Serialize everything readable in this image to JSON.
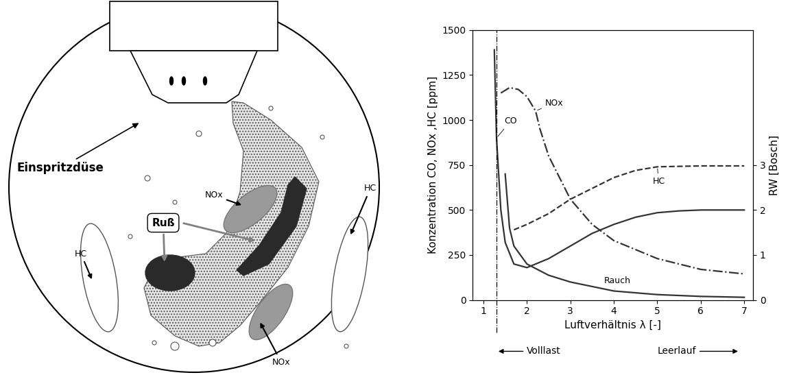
{
  "diagram": {
    "injector": "Einspritzdüse",
    "soot": "Ruß",
    "nox_labels": [
      "NOx",
      "NOx"
    ],
    "hc_labels": [
      "HC",
      "HC"
    ]
  },
  "chart_data": {
    "type": "line",
    "xlabel": "Luftverhältnis λ [-]",
    "ylabel": "Konzentration CO, NOx ,HC [ppm]",
    "y2label": "RW [Bosch]",
    "xlim": [
      0.75,
      7.2
    ],
    "xticks": [
      1,
      2,
      3,
      4,
      5,
      6,
      7
    ],
    "ylim": [
      0,
      1500
    ],
    "yticks": [
      0,
      250,
      500,
      750,
      1000,
      1250,
      1500
    ],
    "y2lim": [
      0,
      6
    ],
    "y2ticks": [
      0,
      1,
      2,
      3
    ],
    "grid": false,
    "series": [
      {
        "name": "CO",
        "color": "#333333",
        "line_style": "solid",
        "x": [
          1.25,
          1.3,
          1.4,
          1.5,
          1.7,
          2.0,
          2.5,
          3.0,
          3.5,
          4.0,
          4.5,
          5.0,
          5.5,
          6.0,
          6.5,
          7.0
        ],
        "values": [
          1390,
          900,
          500,
          320,
          200,
          180,
          230,
          300,
          370,
          420,
          460,
          485,
          495,
          500,
          500,
          500
        ]
      },
      {
        "name": "NOx",
        "color": "#333333",
        "line_style": "dashdot",
        "x": [
          1.4,
          1.6,
          1.8,
          2.0,
          2.2,
          2.3,
          2.5,
          3.0,
          3.5,
          4.0,
          5.0,
          6.0,
          7.0
        ],
        "values": [
          1150,
          1180,
          1170,
          1130,
          1050,
          950,
          800,
          560,
          420,
          330,
          230,
          170,
          145
        ]
      },
      {
        "name": "HC",
        "color": "#333333",
        "line_style": "dashed",
        "x": [
          1.7,
          2.0,
          2.5,
          3.0,
          3.5,
          4.0,
          4.5,
          5.0,
          6.0,
          7.0
        ],
        "values": [
          390,
          420,
          480,
          560,
          620,
          680,
          720,
          740,
          745,
          745
        ]
      },
      {
        "name": "Rauch",
        "color": "#333333",
        "line_style": "solid",
        "axis": "y2",
        "x": [
          1.5,
          1.6,
          1.7,
          2.0,
          2.5,
          3.0,
          4.0,
          5.0,
          6.0,
          7.0
        ],
        "values": [
          2.8,
          1.6,
          1.2,
          0.8,
          0.55,
          0.4,
          0.2,
          0.12,
          0.08,
          0.06
        ]
      }
    ],
    "annotations": [
      {
        "text": "Volllast",
        "x": 1.3
      },
      {
        "text": "Leerlauf"
      }
    ]
  }
}
